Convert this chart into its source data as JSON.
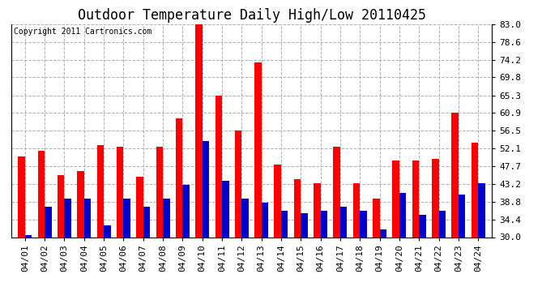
{
  "title": "Outdoor Temperature Daily High/Low 20110425",
  "copyright": "Copyright 2011 Cartronics.com",
  "dates": [
    "04/01",
    "04/02",
    "04/03",
    "04/04",
    "04/05",
    "04/06",
    "04/07",
    "04/08",
    "04/09",
    "04/10",
    "04/11",
    "04/12",
    "04/13",
    "04/14",
    "04/15",
    "04/16",
    "04/17",
    "04/18",
    "04/19",
    "04/20",
    "04/21",
    "04/22",
    "04/23",
    "04/24"
  ],
  "highs": [
    50.0,
    51.5,
    45.5,
    46.5,
    53.0,
    52.5,
    45.0,
    52.5,
    59.5,
    83.0,
    65.3,
    56.5,
    73.5,
    48.0,
    44.5,
    43.5,
    52.5,
    43.5,
    39.5,
    49.0,
    49.0,
    49.5,
    61.0,
    53.5
  ],
  "lows": [
    30.5,
    37.5,
    39.5,
    39.5,
    33.0,
    39.5,
    37.5,
    39.5,
    43.0,
    54.0,
    44.0,
    39.5,
    38.5,
    36.5,
    36.0,
    36.5,
    37.5,
    36.5,
    32.0,
    41.0,
    35.5,
    36.5,
    40.5,
    43.5
  ],
  "high_color": "#ff0000",
  "low_color": "#0000cc",
  "background_color": "#ffffff",
  "grid_color": "#b0b0b0",
  "ylim_min": 30.0,
  "ylim_max": 83.0,
  "yticks": [
    30.0,
    34.4,
    38.8,
    43.2,
    47.7,
    52.1,
    56.5,
    60.9,
    65.3,
    69.8,
    74.2,
    78.6,
    83.0
  ],
  "title_fontsize": 12,
  "tick_fontsize": 8,
  "copyright_fontsize": 7,
  "bar_width": 0.35
}
